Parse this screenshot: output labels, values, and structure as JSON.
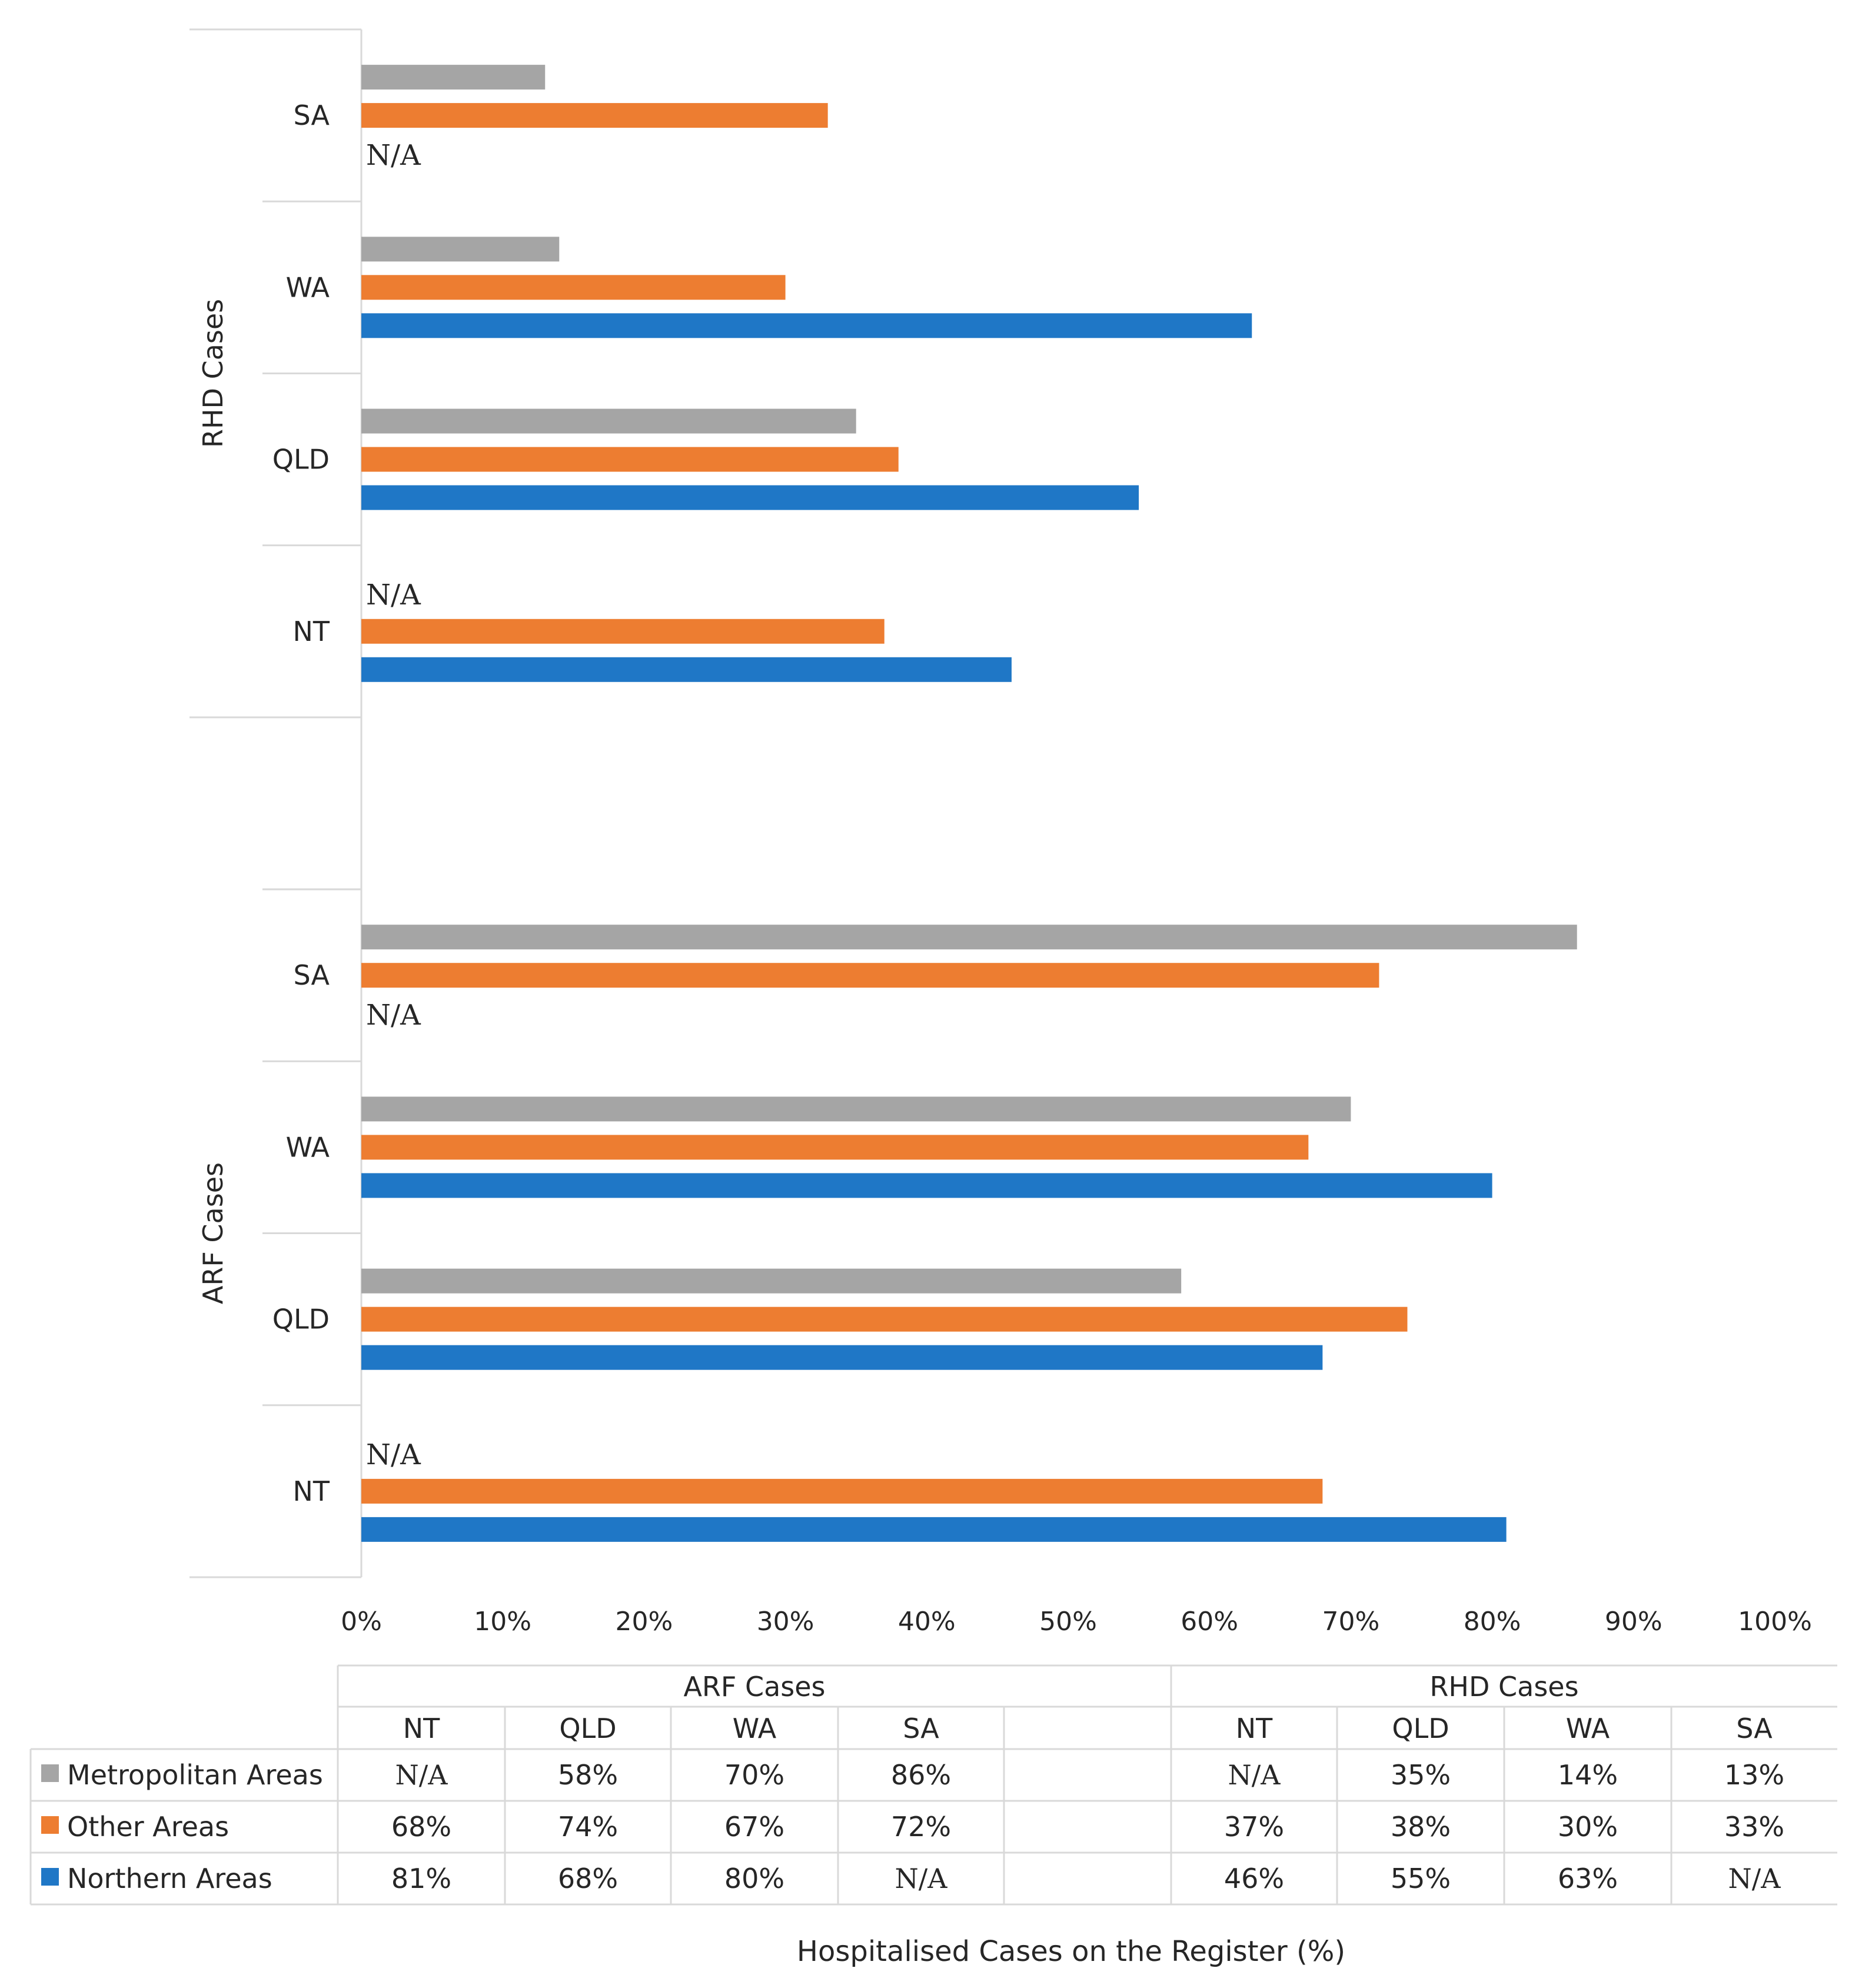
{
  "chart_data": {
    "type": "bar",
    "orientation": "horizontal",
    "xlabel": "Hospitalised Cases on the Register (%)",
    "xlim": [
      0,
      100
    ],
    "ticks": [
      "0%",
      "10%",
      "20%",
      "30%",
      "40%",
      "50%",
      "60%",
      "70%",
      "80%",
      "90%",
      "100%"
    ],
    "grid": false,
    "legend_placement": "data-table",
    "groups": [
      {
        "label": "ARF Cases",
        "categories": [
          "NT",
          "QLD",
          "WA",
          "SA"
        ]
      },
      {
        "label": "RHD Cases",
        "categories": [
          "NT",
          "QLD",
          "WA",
          "SA"
        ]
      }
    ],
    "series": [
      {
        "name": "Metropolitan Areas",
        "color": "#a5a5a5",
        "values": [
          null,
          58,
          70,
          86,
          null,
          35,
          14,
          13
        ],
        "labels": [
          "N/A",
          "58%",
          "70%",
          "86%",
          "N/A",
          "35%",
          "14%",
          "13%"
        ]
      },
      {
        "name": "Other Areas",
        "color": "#ed7d31",
        "values": [
          68,
          74,
          67,
          72,
          37,
          38,
          30,
          33
        ],
        "labels": [
          "68%",
          "74%",
          "67%",
          "72%",
          "37%",
          "38%",
          "30%",
          "33%"
        ]
      },
      {
        "name": "Northern Areas",
        "color": "#1f77c6",
        "values": [
          81,
          68,
          80,
          null,
          46,
          55,
          63,
          null
        ],
        "labels": [
          "81%",
          "68%",
          "80%",
          "N/A",
          "46%",
          "55%",
          "63%",
          "N/A"
        ]
      }
    ],
    "missing_label": "N/A"
  }
}
